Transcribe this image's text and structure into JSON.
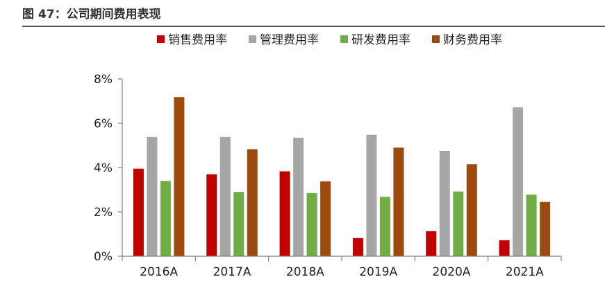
{
  "figure": {
    "title": "图 47：公司期间费用表现"
  },
  "chart_data": {
    "type": "bar",
    "title": "",
    "xlabel": "",
    "ylabel": "",
    "categories": [
      "2016A",
      "2017A",
      "2018A",
      "2019A",
      "2020A",
      "2021A"
    ],
    "series": [
      {
        "name": "销售费用率",
        "color": "#c00000",
        "values": [
          3.95,
          3.7,
          3.83,
          0.82,
          1.13,
          0.72
        ]
      },
      {
        "name": "管理费用率",
        "color": "#a6a6a6",
        "values": [
          5.38,
          5.38,
          5.35,
          5.48,
          4.75,
          6.72
        ]
      },
      {
        "name": "研发费用率",
        "color": "#70ad47",
        "values": [
          3.4,
          2.9,
          2.85,
          2.68,
          2.92,
          2.78
        ]
      },
      {
        "name": "财务费用率",
        "color": "#9c4a0e",
        "values": [
          7.18,
          4.83,
          3.38,
          4.9,
          4.15,
          2.45
        ]
      }
    ],
    "ylim": [
      0,
      8
    ],
    "yticks": [
      0,
      2,
      4,
      6,
      8
    ],
    "ytick_labels": [
      "0%",
      "2%",
      "4%",
      "6%",
      "8%"
    ],
    "grid": false,
    "legend_position": "top-center"
  }
}
